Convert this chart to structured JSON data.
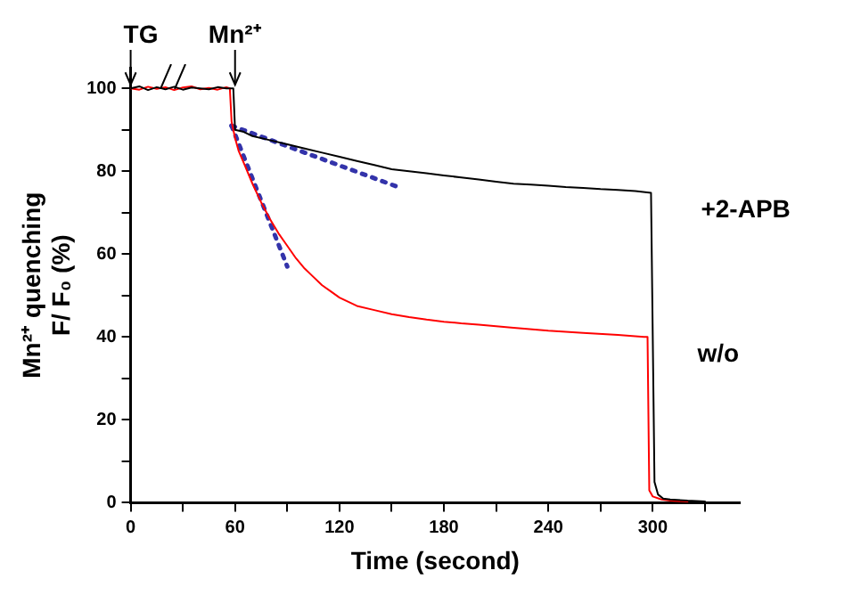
{
  "chart_data": {
    "type": "line",
    "xlabel": "Time (second)",
    "ylabel": "Mn²⁺ quenching\nF/ F₀ (%)",
    "xlim": [
      0,
      350
    ],
    "xticks": [
      0,
      {
        "value": 30,
        "label": null
      },
      60,
      {
        "value": 90,
        "label": null
      },
      120,
      {
        "value": 150,
        "label": null
      },
      180,
      {
        "value": 210,
        "label": null
      },
      240,
      {
        "value": 270,
        "label": null
      },
      300,
      {
        "value": 330,
        "label": null
      }
    ],
    "ylim": [
      0,
      105
    ],
    "yticks": [
      0,
      {
        "value": 10,
        "label": null
      },
      20,
      {
        "value": 30,
        "label": null
      },
      40,
      {
        "value": 50,
        "label": null
      },
      60,
      {
        "value": 70,
        "label": null
      },
      80,
      {
        "value": 90,
        "label": null
      },
      100
    ],
    "grid": false,
    "legend": false,
    "marker": "none",
    "annotations": [
      {
        "text": "TG",
        "x": 0,
        "y": 100
      },
      {
        "text": "Mn²⁺",
        "x": 60,
        "y": 100
      }
    ],
    "series": [
      {
        "name": "+2-APB",
        "color": "#000000",
        "x": [
          0,
          5,
          10,
          15,
          20,
          25,
          30,
          35,
          40,
          45,
          50,
          55,
          59,
          60,
          65,
          70,
          80,
          90,
          100,
          110,
          120,
          130,
          140,
          150,
          160,
          170,
          180,
          190,
          200,
          210,
          220,
          230,
          240,
          250,
          260,
          270,
          280,
          290,
          299,
          301,
          303,
          306,
          310,
          320,
          330
        ],
        "values": [
          100,
          100.5,
          99.6,
          100.3,
          99.8,
          100.4,
          99.7,
          100.2,
          100,
          99.8,
          100.3,
          100,
          100,
          90,
          89.5,
          88.5,
          87.5,
          86.5,
          85.5,
          84.5,
          83.5,
          82.5,
          81.5,
          80.5,
          80,
          79.5,
          79,
          78.5,
          78,
          77.5,
          77,
          76.8,
          76.5,
          76.2,
          76,
          75.7,
          75.5,
          75.2,
          74.8,
          5,
          2,
          1,
          0.8,
          0.5,
          0.3
        ]
      },
      {
        "name": "w/o",
        "color": "#ff0000",
        "x": [
          0,
          5,
          10,
          15,
          20,
          25,
          30,
          35,
          40,
          45,
          50,
          55,
          57,
          58,
          60,
          62,
          65,
          70,
          75,
          80,
          85,
          90,
          95,
          100,
          105,
          110,
          115,
          120,
          130,
          140,
          150,
          160,
          170,
          180,
          190,
          200,
          210,
          220,
          240,
          260,
          280,
          295,
          297,
          298,
          300,
          305,
          310,
          320
        ],
        "values": [
          100,
          99.7,
          100.4,
          99.9,
          100.3,
          99.6,
          100.2,
          100.5,
          99.8,
          100.1,
          99.7,
          100.3,
          100,
          92,
          88,
          85,
          82,
          77,
          72.5,
          68.5,
          65,
          62,
          59,
          56.5,
          54.5,
          52.5,
          51,
          49.5,
          47.5,
          46.5,
          45.5,
          44.8,
          44.2,
          43.7,
          43.3,
          43,
          42.6,
          42.2,
          41.5,
          41,
          40.5,
          40,
          40,
          3,
          1.5,
          0.8,
          0.5,
          0.3
        ]
      },
      {
        "color": "#3333aa",
        "line_style": "dotted",
        "x": [
          58,
          90
        ],
        "values": [
          91,
          57
        ]
      },
      {
        "color": "#3333aa",
        "line_style": "dotted",
        "x": [
          58,
          155
        ],
        "values": [
          91,
          76
        ]
      }
    ]
  }
}
